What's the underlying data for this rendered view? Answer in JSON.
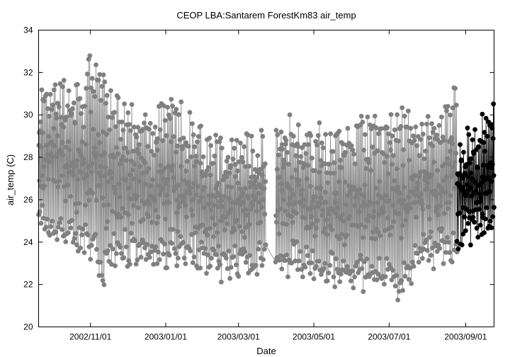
{
  "chart_data": {
    "type": "scatter",
    "title": "CEOP LBA:Santarem ForestKm83  air_temp",
    "xlabel": "Date",
    "ylabel": "air_temp (C)",
    "x_range": [
      "2002-09-20",
      "2003-09-24"
    ],
    "ylim": [
      20,
      34
    ],
    "y_ticks": [
      20,
      22,
      24,
      26,
      28,
      30,
      32,
      34
    ],
    "x_ticks": [
      {
        "date": "2002-11-01",
        "label": "2002/11/01"
      },
      {
        "date": "2003-01-01",
        "label": "2003/01/01"
      },
      {
        "date": "2003-03-01",
        "label": "2003/03/01"
      },
      {
        "date": "2003-05-01",
        "label": "2003/05/01"
      },
      {
        "date": "2003-07-01",
        "label": "2003/07/01"
      },
      {
        "date": "2003-09-01",
        "label": "2003/09/01"
      }
    ],
    "grid": false,
    "legend": false,
    "series": [
      {
        "color": "#808080",
        "marker": "filled-circle",
        "connected": true,
        "description": "daily air temperature range (hourly observations oscillating between daily min and max)",
        "x_start": "2002-09-20",
        "x_end": "2003-08-25",
        "gap": [
          "2003-03-23",
          "2003-03-31"
        ],
        "daily_min_envelope": [
          {
            "date": "2002-09-20",
            "value": 24.0
          },
          {
            "date": "2002-10-15",
            "value": 23.3
          },
          {
            "date": "2002-11-05",
            "value": 22.8
          },
          {
            "date": "2002-11-10",
            "value": 21.3
          },
          {
            "date": "2002-11-20",
            "value": 22.8
          },
          {
            "date": "2002-12-20",
            "value": 22.6
          },
          {
            "date": "2003-01-20",
            "value": 22.7
          },
          {
            "date": "2003-02-15",
            "value": 22.0
          },
          {
            "date": "2003-03-20",
            "value": 22.3
          },
          {
            "date": "2003-04-15",
            "value": 22.2
          },
          {
            "date": "2003-05-20",
            "value": 21.6
          },
          {
            "date": "2003-06-25",
            "value": 21.5
          },
          {
            "date": "2003-07-10",
            "value": 20.9
          },
          {
            "date": "2003-07-25",
            "value": 22.3
          },
          {
            "date": "2003-08-25",
            "value": 23.0
          }
        ],
        "daily_max_envelope": [
          {
            "date": "2002-09-20",
            "value": 31.5
          },
          {
            "date": "2002-10-01",
            "value": 32.2
          },
          {
            "date": "2002-10-25",
            "value": 31.8
          },
          {
            "date": "2002-11-01",
            "value": 33.3
          },
          {
            "date": "2002-11-20",
            "value": 31.3
          },
          {
            "date": "2002-12-20",
            "value": 30.5
          },
          {
            "date": "2003-01-05",
            "value": 31.3
          },
          {
            "date": "2003-02-01",
            "value": 29.5
          },
          {
            "date": "2003-03-05",
            "value": 29.2
          },
          {
            "date": "2003-04-10",
            "value": 30.4
          },
          {
            "date": "2003-05-15",
            "value": 29.8
          },
          {
            "date": "2003-06-15",
            "value": 30.2
          },
          {
            "date": "2003-07-01",
            "value": 30.7
          },
          {
            "date": "2003-08-10",
            "value": 30.2
          },
          {
            "date": "2003-08-25",
            "value": 31.7
          }
        ]
      },
      {
        "color": "#000000",
        "marker": "filled-circle",
        "connected": true,
        "description": "recent period, same variable",
        "x_start": "2003-08-25",
        "x_end": "2003-09-24",
        "daily_min_envelope": [
          {
            "date": "2003-08-25",
            "value": 23.5
          },
          {
            "date": "2003-09-10",
            "value": 23.8
          },
          {
            "date": "2003-09-24",
            "value": 24.2
          }
        ],
        "daily_max_envelope": [
          {
            "date": "2003-08-25",
            "value": 29.2
          },
          {
            "date": "2003-09-10",
            "value": 30.0
          },
          {
            "date": "2003-09-24",
            "value": 31.4
          }
        ]
      }
    ]
  }
}
